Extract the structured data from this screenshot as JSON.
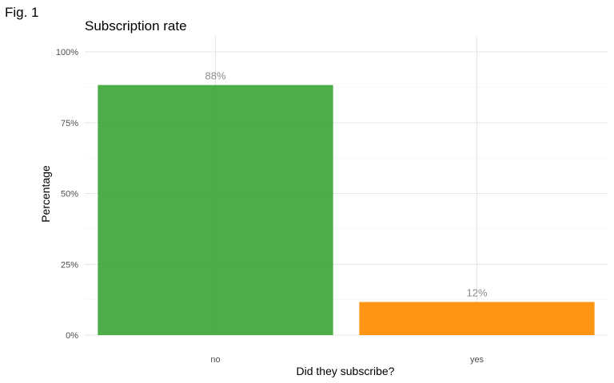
{
  "figure_label": "Fig. 1",
  "chart_data": {
    "type": "bar",
    "title": "Subscription rate",
    "xlabel": "Did they subscribe?",
    "ylabel": "Percentage",
    "categories": [
      "no",
      "yes"
    ],
    "values": [
      88.3,
      11.7
    ],
    "data_labels": [
      "88%",
      "12%"
    ],
    "colors": [
      "#3ea63a",
      "#ff8c00"
    ],
    "ylim": [
      0,
      100
    ],
    "yticks": [
      0,
      25,
      50,
      75,
      100
    ],
    "ytick_labels": [
      "0%",
      "25%",
      "50%",
      "75%",
      "100%"
    ],
    "grid": true,
    "legend": "none"
  }
}
